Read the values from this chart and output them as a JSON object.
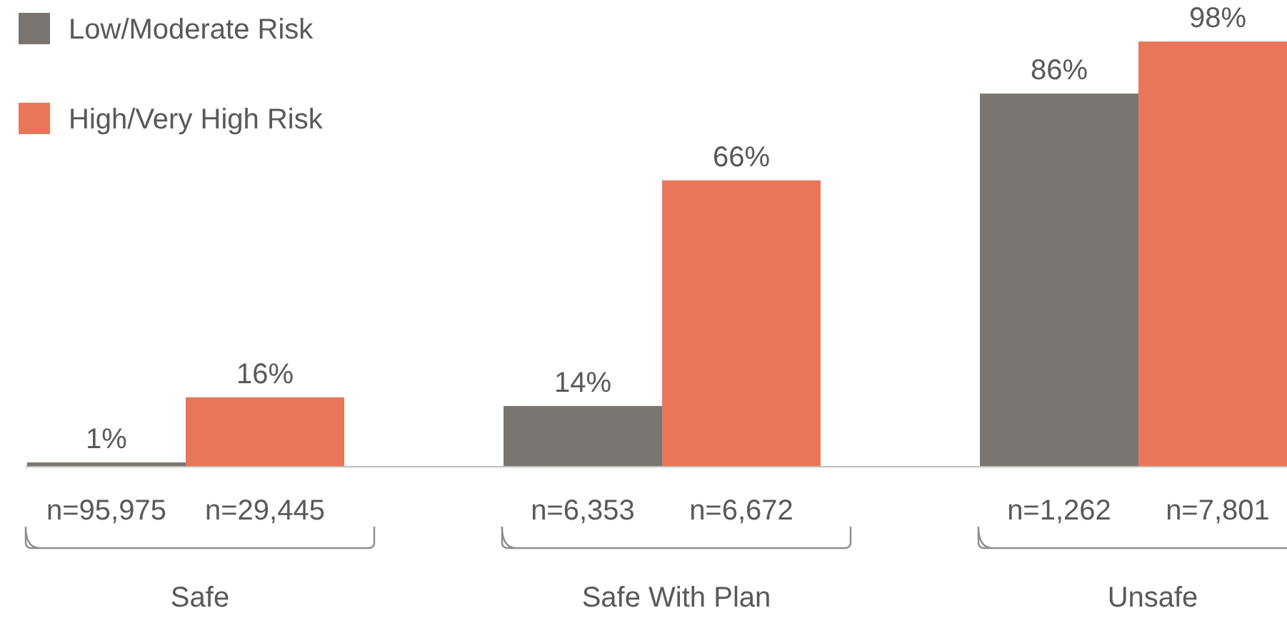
{
  "chart_data": {
    "type": "bar",
    "categories": [
      "Safe",
      "Safe With Plan",
      "Unsafe"
    ],
    "series": [
      {
        "name": "Low/Moderate Risk",
        "color": "#7a7571",
        "values": [
          1,
          14,
          86
        ],
        "value_labels": [
          "1%",
          "14%",
          "86%"
        ]
      },
      {
        "name": "High/Very High Risk",
        "color": "#e8775a",
        "values": [
          16,
          66,
          98
        ],
        "value_labels": [
          "16%",
          "66%",
          "98%"
        ]
      }
    ],
    "legend": "top left",
    "annotations": [
      "n=95,975",
      "n=29,445",
      "n=6,353",
      "n=6,672",
      "n=1,262",
      "n=7,801"
    ]
  }
}
